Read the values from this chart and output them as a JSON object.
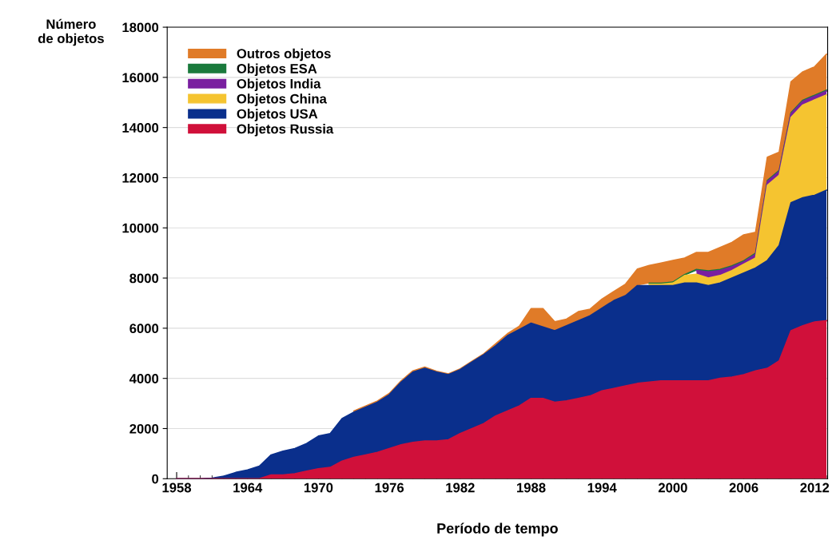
{
  "chart_data": {
    "type": "area",
    "stacked": true,
    "xlabel": "Período de tempo",
    "ylabel": "Número\nde objetos",
    "x": [
      1958,
      1959,
      1960,
      1961,
      1962,
      1963,
      1964,
      1965,
      1966,
      1967,
      1968,
      1969,
      1970,
      1971,
      1972,
      1973,
      1974,
      1975,
      1976,
      1977,
      1978,
      1979,
      1980,
      1981,
      1982,
      1983,
      1984,
      1985,
      1986,
      1987,
      1988,
      1989,
      1990,
      1991,
      1992,
      1993,
      1994,
      1995,
      1996,
      1997,
      1998,
      1999,
      2000,
      2001,
      2002,
      2003,
      2004,
      2005,
      2006,
      2007,
      2008,
      2009,
      2010,
      2011,
      2012,
      2013
    ],
    "series": [
      {
        "name": "Objetos Russia",
        "color": "#d0103a",
        "values": [
          0,
          0,
          0,
          0,
          0,
          0,
          0,
          0,
          150,
          150,
          200,
          300,
          400,
          450,
          700,
          850,
          950,
          1050,
          1200,
          1350,
          1450,
          1500,
          1500,
          1550,
          1800,
          2000,
          2200,
          2500,
          2700,
          2900,
          3200,
          3200,
          3050,
          3100,
          3200,
          3300,
          3500,
          3600,
          3700,
          3800,
          3850,
          3900,
          3900,
          3900,
          3900,
          3900,
          4000,
          4050,
          4150,
          4300,
          4400,
          4700,
          5900,
          6100,
          6250,
          6300
        ]
      },
      {
        "name": "Objetos USA",
        "color": "#0a2f8c",
        "values": [
          0,
          0,
          0,
          20,
          100,
          250,
          350,
          500,
          800,
          950,
          1000,
          1100,
          1300,
          1350,
          1700,
          1800,
          1900,
          2000,
          2150,
          2500,
          2800,
          2900,
          2750,
          2600,
          2550,
          2650,
          2750,
          2800,
          3000,
          3050,
          3000,
          2850,
          2850,
          3000,
          3100,
          3200,
          3300,
          3500,
          3600,
          3900,
          3850,
          3800,
          3800,
          3900,
          3900,
          3800,
          3800,
          3950,
          4050,
          4100,
          4300,
          4600,
          5100,
          5100,
          5050,
          5200
        ]
      },
      {
        "name": "Objetos China",
        "color": "#f5c430",
        "values": [
          null,
          null,
          null,
          null,
          null,
          null,
          null,
          null,
          null,
          null,
          null,
          null,
          null,
          null,
          null,
          null,
          null,
          null,
          null,
          null,
          null,
          null,
          null,
          null,
          null,
          null,
          null,
          null,
          null,
          null,
          null,
          null,
          null,
          null,
          null,
          null,
          null,
          null,
          null,
          null,
          50,
          50,
          100,
          300,
          350,
          300,
          300,
          300,
          350,
          400,
          3000,
          2800,
          3400,
          3700,
          3800,
          3800
        ]
      },
      {
        "name": "Objetos India",
        "color": "#7a1fa0",
        "values": [
          null,
          null,
          null,
          null,
          null,
          null,
          null,
          null,
          null,
          null,
          null,
          null,
          null,
          null,
          null,
          null,
          null,
          null,
          null,
          null,
          null,
          null,
          null,
          null,
          null,
          null,
          null,
          null,
          null,
          null,
          null,
          null,
          null,
          null,
          null,
          null,
          null,
          null,
          null,
          null,
          null,
          null,
          null,
          null,
          150,
          250,
          200,
          150,
          100,
          150,
          150,
          150,
          150,
          150,
          150,
          150
        ]
      },
      {
        "name": "Objetos ESA",
        "color": "#1a7a3c",
        "values": [
          null,
          null,
          null,
          null,
          null,
          null,
          null,
          null,
          null,
          null,
          null,
          null,
          null,
          null,
          null,
          null,
          null,
          null,
          null,
          null,
          null,
          null,
          null,
          null,
          null,
          null,
          null,
          null,
          null,
          null,
          null,
          null,
          null,
          null,
          null,
          null,
          null,
          null,
          null,
          null,
          40,
          40,
          40,
          40,
          40,
          40,
          40,
          40,
          40,
          40,
          40,
          40,
          40,
          40,
          40,
          40
        ]
      },
      {
        "name": "Outros objetos",
        "color": "#e07b28",
        "values": [
          null,
          null,
          null,
          null,
          null,
          null,
          null,
          null,
          null,
          null,
          null,
          null,
          null,
          null,
          null,
          50,
          50,
          50,
          50,
          50,
          50,
          50,
          30,
          30,
          30,
          30,
          30,
          80,
          80,
          130,
          580,
          730,
          360,
          260,
          360,
          260,
          360,
          360,
          460,
          660,
          710,
          810,
          860,
          660,
          680,
          730,
          880,
          930,
          1030,
          830,
          930,
          730,
          1230,
          1130,
          1130,
          1430
        ]
      }
    ],
    "xlim": [
      1957.2,
      2013.1
    ],
    "xticks": [
      1958,
      1964,
      1970,
      1976,
      1982,
      1988,
      1994,
      2000,
      2006,
      2012
    ],
    "ylim": [
      0,
      18000
    ],
    "yticks": [
      0,
      2000,
      4000,
      6000,
      8000,
      10000,
      12000,
      14000,
      16000,
      18000
    ],
    "grid": "y",
    "legend": "top left"
  }
}
